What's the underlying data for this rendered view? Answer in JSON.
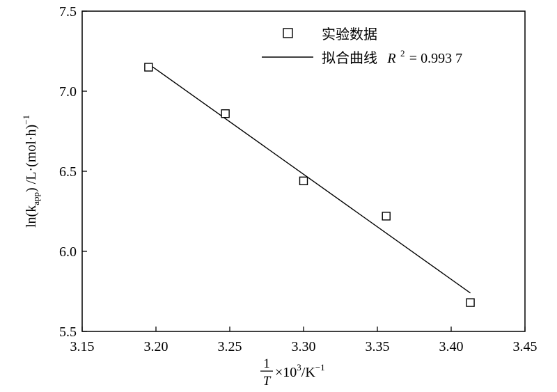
{
  "chart_data": {
    "type": "scatter",
    "xlabel": {
      "fraction_numerator": "1",
      "fraction_denominator": "T",
      "rest": "×10",
      "rest_sup": "3",
      "unit": "/K",
      "unit_sup": "−1"
    },
    "ylabel": {
      "prefix": "ln(k",
      "sub": "app",
      "suffix": ") /L·(mol·h)",
      "sup": "−1"
    },
    "xlim": [
      3.15,
      3.45
    ],
    "ylim": [
      5.5,
      7.5
    ],
    "x_ticks": [
      "3.15",
      "3.20",
      "3.25",
      "3.30",
      "3.35",
      "3.40",
      "3.45"
    ],
    "y_ticks": [
      "5.5",
      "6.0",
      "6.5",
      "7.0",
      "7.5"
    ],
    "grid": false,
    "legend_position": "top-right",
    "series": [
      {
        "name": "实验数据",
        "kind": "scatter",
        "marker": "open-square",
        "x": [
          3.195,
          3.247,
          3.3,
          3.356,
          3.413
        ],
        "y": [
          7.15,
          6.86,
          6.44,
          6.22,
          5.68
        ]
      },
      {
        "name": "拟合曲线",
        "kind": "line",
        "x": [
          3.195,
          3.413
        ],
        "y": [
          7.17,
          5.74
        ]
      }
    ],
    "legend": {
      "scatter_label": "实验数据",
      "line_label": "拟合曲线",
      "r2_symbol": "R",
      "r2_sup": "2",
      "r2_value": " = 0.993 7"
    },
    "colors": {
      "marks": "#000000",
      "background": "#ffffff"
    }
  }
}
